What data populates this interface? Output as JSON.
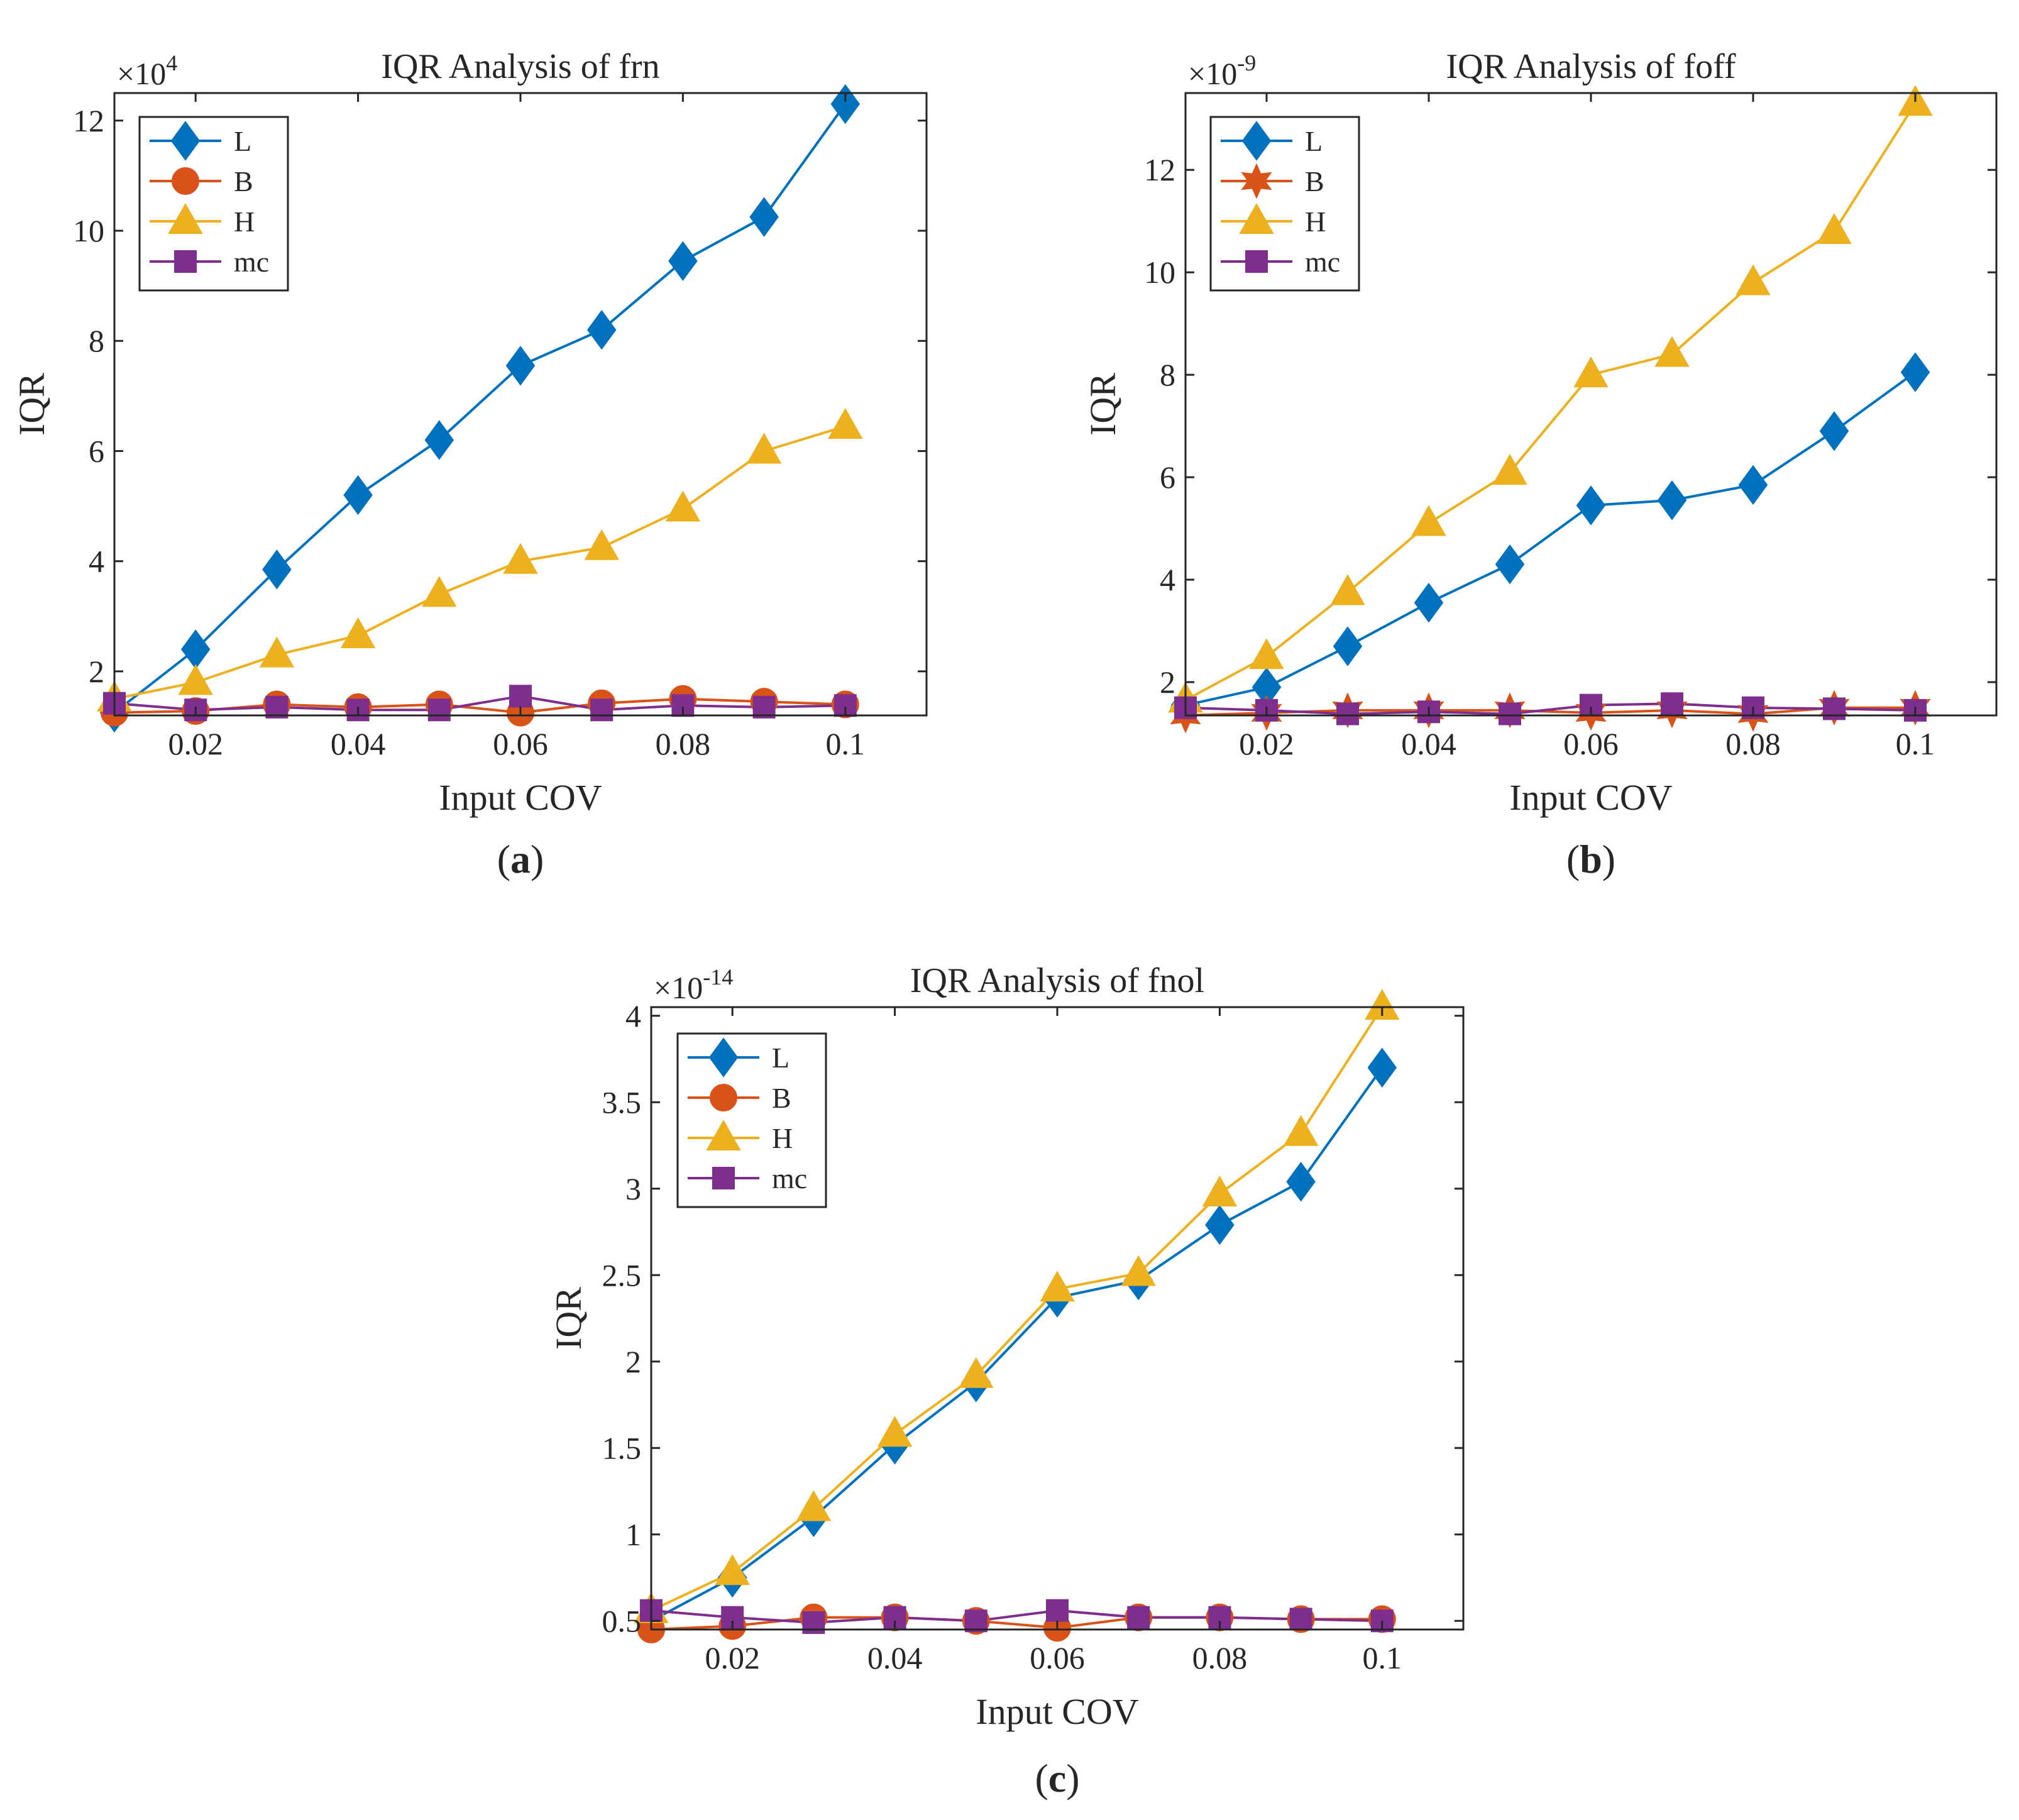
{
  "colors": {
    "L": "#0072BD",
    "B": "#D95319",
    "H": "#EDB120",
    "mc": "#7E2F8E",
    "axis": "#262626"
  },
  "chart_data": [
    {
      "id": "a",
      "type": "line",
      "title": "IQR Analysis of frn",
      "xlabel": "Input COV",
      "ylabel": "IQR",
      "caption_label": "a",
      "exponent": "4",
      "x": [
        0.01,
        0.02,
        0.03,
        0.04,
        0.05,
        0.06,
        0.07,
        0.08,
        0.09,
        0.1
      ],
      "xlim": [
        0.01,
        0.11
      ],
      "ylim": [
        1.2,
        12.5
      ],
      "xticks": [
        0.02,
        0.04,
        0.06,
        0.08,
        0.1
      ],
      "xtick_labels": [
        "0.02",
        "0.04",
        "0.06",
        "0.08",
        "0.1"
      ],
      "yticks": [
        2,
        4,
        6,
        8,
        10,
        12
      ],
      "ytick_labels": [
        "2",
        "4",
        "6",
        "8",
        "10",
        "12"
      ],
      "legend_position": "top-left",
      "series": [
        {
          "name": "L",
          "marker": "diamond",
          "values": [
            1.25,
            2.4,
            3.85,
            5.2,
            6.2,
            7.55,
            8.2,
            9.45,
            10.25,
            12.3
          ]
        },
        {
          "name": "B",
          "marker": "circle",
          "values": [
            1.25,
            1.28,
            1.4,
            1.35,
            1.4,
            1.25,
            1.42,
            1.5,
            1.45,
            1.4
          ]
        },
        {
          "name": "H",
          "marker": "triangle",
          "values": [
            1.5,
            1.8,
            2.3,
            2.65,
            3.4,
            4.0,
            4.25,
            4.95,
            6.0,
            6.45
          ]
        },
        {
          "name": "mc",
          "marker": "square",
          "values": [
            1.42,
            1.3,
            1.35,
            1.3,
            1.3,
            1.55,
            1.3,
            1.38,
            1.35,
            1.38
          ]
        }
      ]
    },
    {
      "id": "b",
      "type": "line",
      "title": "IQR Analysis of foff",
      "xlabel": "Input COV",
      "ylabel": "IQR",
      "caption_label": "b",
      "exponent": "-9",
      "x": [
        0.01,
        0.02,
        0.03,
        0.04,
        0.05,
        0.06,
        0.07,
        0.08,
        0.09,
        0.1
      ],
      "xlim": [
        0.01,
        0.11
      ],
      "ylim": [
        1.35,
        13.5
      ],
      "xticks": [
        0.02,
        0.04,
        0.06,
        0.08,
        0.1
      ],
      "xtick_labels": [
        "0.02",
        "0.04",
        "0.06",
        "0.08",
        "0.1"
      ],
      "yticks": [
        2,
        4,
        6,
        8,
        10,
        12
      ],
      "ytick_labels": [
        "2",
        "4",
        "6",
        "8",
        "10",
        "12"
      ],
      "legend_position": "top-left",
      "series": [
        {
          "name": "L",
          "marker": "diamond",
          "values": [
            1.55,
            1.9,
            2.7,
            3.55,
            4.3,
            5.45,
            5.55,
            5.85,
            6.9,
            8.05
          ]
        },
        {
          "name": "B",
          "marker": "hexagram",
          "values": [
            1.35,
            1.4,
            1.45,
            1.45,
            1.45,
            1.4,
            1.45,
            1.38,
            1.5,
            1.5
          ]
        },
        {
          "name": "H",
          "marker": "triangle",
          "values": [
            1.65,
            2.5,
            3.75,
            5.1,
            6.1,
            8.0,
            8.4,
            9.8,
            10.8,
            13.3
          ]
        },
        {
          "name": "mc",
          "marker": "square",
          "values": [
            1.5,
            1.45,
            1.38,
            1.42,
            1.38,
            1.55,
            1.58,
            1.5,
            1.48,
            1.45
          ]
        }
      ]
    },
    {
      "id": "c",
      "type": "line",
      "title": "IQR Analysis of fnol",
      "xlabel": "Input COV",
      "ylabel": "IQR",
      "caption_label": "c",
      "exponent": "-14",
      "x": [
        0.01,
        0.02,
        0.03,
        0.04,
        0.05,
        0.06,
        0.07,
        0.08,
        0.09,
        0.1
      ],
      "xlim": [
        0.01,
        0.11
      ],
      "ylim": [
        0.45,
        4.05
      ],
      "xticks": [
        0.02,
        0.04,
        0.06,
        0.08,
        0.1
      ],
      "xtick_labels": [
        "0.02",
        "0.04",
        "0.06",
        "0.08",
        "0.1"
      ],
      "yticks": [
        0.5,
        1,
        1.5,
        2,
        2.5,
        3,
        3.5,
        4
      ],
      "ytick_labels": [
        "0.5",
        "1",
        "1.5",
        "2",
        "2.5",
        "3",
        "3.5",
        "4"
      ],
      "legend_position": "top-left",
      "series": [
        {
          "name": "L",
          "marker": "diamond",
          "values": [
            0.5,
            0.75,
            1.1,
            1.52,
            1.88,
            2.37,
            2.47,
            2.79,
            3.04,
            3.7
          ]
        },
        {
          "name": "B",
          "marker": "circle",
          "values": [
            0.45,
            0.47,
            0.52,
            0.52,
            0.5,
            0.46,
            0.52,
            0.52,
            0.51,
            0.51
          ]
        },
        {
          "name": "H",
          "marker": "triangle",
          "values": [
            0.56,
            0.78,
            1.15,
            1.58,
            1.92,
            2.42,
            2.51,
            2.97,
            3.32,
            4.05
          ]
        },
        {
          "name": "mc",
          "marker": "square",
          "values": [
            0.56,
            0.52,
            0.49,
            0.52,
            0.5,
            0.56,
            0.52,
            0.52,
            0.51,
            0.5
          ]
        }
      ]
    }
  ]
}
